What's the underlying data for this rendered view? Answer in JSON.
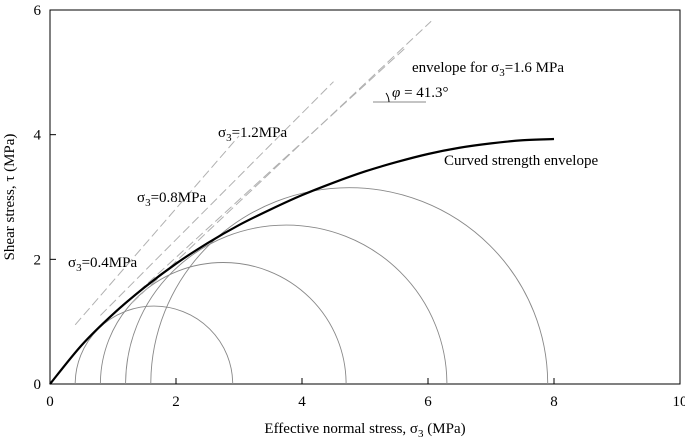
{
  "chart_data": {
    "type": "line",
    "title": "",
    "xlabel": "Effective normal stress, σ",
    "xlabel_sub": "3",
    "xlabel_unit": " (MPa)",
    "ylabel": "Shear stress, τ (MPa)",
    "xlim": [
      0,
      10
    ],
    "ylim": [
      0,
      6
    ],
    "xticks": [
      "0",
      "2",
      "4",
      "6",
      "8",
      "10"
    ],
    "yticks": [
      "0",
      "2",
      "4",
      "6"
    ],
    "grid": false,
    "series": [
      {
        "name": "Curved strength envelope",
        "style": "thick-solid",
        "x": [
          0,
          0.5,
          1,
          1.5,
          2,
          2.5,
          3,
          3.5,
          4,
          4.5,
          5,
          5.5,
          6,
          6.5,
          7,
          7.5,
          8
        ],
        "y": [
          0,
          0.62,
          1.12,
          1.55,
          1.93,
          2.26,
          2.55,
          2.8,
          3.03,
          3.23,
          3.41,
          3.56,
          3.69,
          3.79,
          3.86,
          3.91,
          3.93
        ]
      }
    ],
    "mohr_circles": [
      {
        "sigma3": 0.4,
        "sigma1": 2.9
      },
      {
        "sigma3": 0.8,
        "sigma1": 4.7
      },
      {
        "sigma3": 1.2,
        "sigma1": 6.3
      },
      {
        "sigma3": 1.6,
        "sigma1": 7.9
      }
    ],
    "tangent_lines": [
      {
        "from": [
          0.4,
          0.95
        ],
        "to": [
          3.0,
          3.98
        ]
      },
      {
        "from": [
          0.8,
          1.1
        ],
        "to": [
          4.5,
          4.85
        ]
      },
      {
        "from": [
          1.1,
          1.2
        ],
        "to": [
          5.65,
          5.4
        ]
      },
      {
        "from": [
          1.3,
          1.3
        ],
        "to": [
          6.05,
          5.82
        ]
      }
    ],
    "annotations": {
      "s04": {
        "prefix": "σ",
        "sub": "3",
        "rest": "=0.4MPa"
      },
      "s08": {
        "prefix": "σ",
        "sub": "3",
        "rest": "=0.8MPa"
      },
      "s12": {
        "prefix": "σ",
        "sub": "3",
        "rest": "=1.2MPa"
      },
      "s16": {
        "prefix": "envelope for σ",
        "sub": "3",
        "rest": "=1.6 MPa"
      },
      "phi": {
        "symbol": "φ",
        "rest": " = 41.3°"
      },
      "curve": "Curved strength envelope"
    },
    "colors": {
      "envelope": "#000000",
      "circles": "#888888",
      "tangents": "#b0b0b0"
    }
  }
}
